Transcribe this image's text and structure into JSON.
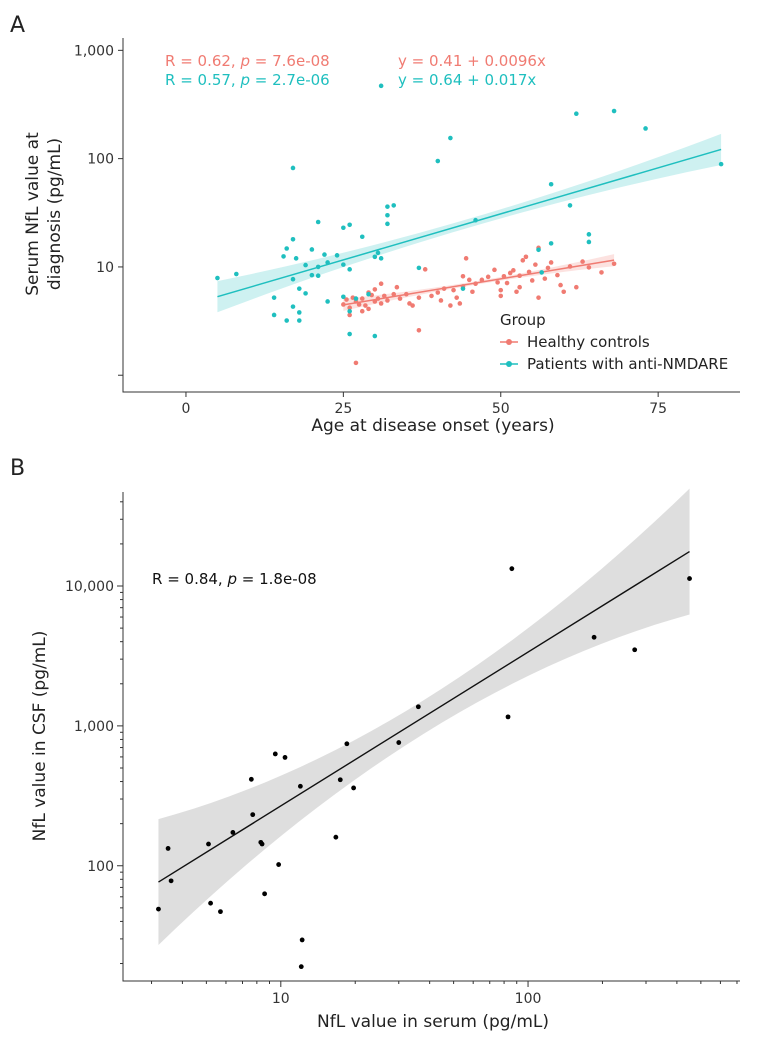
{
  "chart_data": [
    {
      "panel": "A",
      "type": "scatter",
      "xlabel": "Age at disease onset (years)",
      "ylabel_lines": [
        "Serum NfL value at",
        "diagnosis (pg/mL)"
      ],
      "x_scale": "linear",
      "y_scale": "log",
      "xlim": [
        -10,
        88
      ],
      "ylim": [
        0.7,
        1300
      ],
      "x_ticks": [
        0,
        25,
        50,
        75
      ],
      "x_tick_labels": [
        "0",
        "25",
        "50",
        "75"
      ],
      "y_ticks": [
        1,
        10,
        100,
        1000
      ],
      "y_tick_labels": [
        "",
        "10",
        "100",
        "1,000"
      ],
      "grid": false,
      "legend": {
        "title": "Group",
        "placement": "bottom-right",
        "entries": [
          "Healthy controls",
          "Patients with anti-NMDARE"
        ]
      },
      "annotations": [
        {
          "prefix": "R = 0.62, ",
          "italic": "p",
          "suffix": " = 7.6e-08",
          "series": 0
        },
        {
          "text": "y = 0.41 + 0.0096x",
          "series": 0
        },
        {
          "prefix": "R = 0.57, ",
          "italic": "p",
          "suffix": " = 2.7e-06",
          "series": 1
        },
        {
          "text": "y = 0.64 + 0.017x",
          "series": 1
        }
      ],
      "series": [
        {
          "name": "Healthy controls",
          "color": "#F07B72",
          "fit": {
            "intercept": 0.41,
            "slope": 0.0096,
            "x_range": [
              25,
              68
            ]
          },
          "points": [
            [
              25,
              4.5
            ],
            [
              25.5,
              5
            ],
            [
              26,
              3.6
            ],
            [
              26,
              4.2
            ],
            [
              26.5,
              5.2
            ],
            [
              27,
              1.3
            ],
            [
              27,
              4.8
            ],
            [
              27.5,
              4.5
            ],
            [
              28,
              5.1
            ],
            [
              28,
              3.9
            ],
            [
              28.5,
              4.4
            ],
            [
              29,
              5.8
            ],
            [
              29,
              4.1
            ],
            [
              29.5,
              5.5
            ],
            [
              30,
              6.2
            ],
            [
              30,
              4.8
            ],
            [
              30.5,
              5.1
            ],
            [
              31,
              4.6
            ],
            [
              31,
              7
            ],
            [
              31.5,
              5.4
            ],
            [
              32,
              4.9
            ],
            [
              33,
              5.6
            ],
            [
              33.5,
              6.5
            ],
            [
              34,
              5.1
            ],
            [
              35,
              5.6
            ],
            [
              35.5,
              4.6
            ],
            [
              36,
              4.4
            ],
            [
              37,
              5.2
            ],
            [
              37,
              2.6
            ],
            [
              38,
              9.5
            ],
            [
              39,
              5.4
            ],
            [
              40,
              5.8
            ],
            [
              40.5,
              4.9
            ],
            [
              41,
              6.3
            ],
            [
              42,
              4.4
            ],
            [
              42.5,
              6.1
            ],
            [
              43,
              5.2
            ],
            [
              43.5,
              4.6
            ],
            [
              44,
              6.6
            ],
            [
              44,
              8.2
            ],
            [
              44.5,
              12
            ],
            [
              45,
              7.6
            ],
            [
              45.5,
              5.9
            ],
            [
              46,
              7
            ],
            [
              47,
              7.6
            ],
            [
              48,
              8.1
            ],
            [
              49,
              9.4
            ],
            [
              49.5,
              7.2
            ],
            [
              50,
              6.1
            ],
            [
              50,
              5.4
            ],
            [
              50.5,
              8.2
            ],
            [
              51,
              7.1
            ],
            [
              51.5,
              8.8
            ],
            [
              52,
              9.3
            ],
            [
              52.5,
              5.9
            ],
            [
              53,
              6.5
            ],
            [
              53,
              8.3
            ],
            [
              53.5,
              11.5
            ],
            [
              54,
              12.4
            ],
            [
              54.5,
              9
            ],
            [
              55,
              7.5
            ],
            [
              55.5,
              10.5
            ],
            [
              56,
              15
            ],
            [
              56,
              5.2
            ],
            [
              57,
              7.8
            ],
            [
              57.5,
              9.8
            ],
            [
              58,
              11
            ],
            [
              59,
              8.4
            ],
            [
              59.5,
              6.8
            ],
            [
              60,
              5.9
            ],
            [
              61,
              10.1
            ],
            [
              62,
              6.5
            ],
            [
              63,
              11.2
            ],
            [
              64,
              9.9
            ],
            [
              66,
              8.9
            ],
            [
              68,
              10.7
            ]
          ]
        },
        {
          "name": "Patients with anti-NMDARE",
          "color": "#1FBFBF",
          "fit": {
            "intercept": 0.64,
            "slope": 0.017,
            "x_range": [
              5,
              85
            ]
          },
          "points": [
            [
              5,
              7.9
            ],
            [
              8,
              8.6
            ],
            [
              14,
              5.2
            ],
            [
              14,
              3.6
            ],
            [
              15.5,
              12.5
            ],
            [
              16,
              14.8
            ],
            [
              16,
              3.2
            ],
            [
              17,
              82
            ],
            [
              17,
              18
            ],
            [
              17,
              7.7
            ],
            [
              17,
              4.3
            ],
            [
              17.5,
              12
            ],
            [
              18,
              6.3
            ],
            [
              18,
              3.8
            ],
            [
              18,
              3.2
            ],
            [
              19,
              10.4
            ],
            [
              19,
              5.7
            ],
            [
              20,
              14.5
            ],
            [
              20,
              8.4
            ],
            [
              21,
              26
            ],
            [
              21,
              10
            ],
            [
              21,
              8.3
            ],
            [
              22,
              13
            ],
            [
              22.5,
              11
            ],
            [
              22.5,
              4.8
            ],
            [
              24,
              12.8
            ],
            [
              25,
              23
            ],
            [
              25,
              10.5
            ],
            [
              25,
              5.3
            ],
            [
              26,
              24.5
            ],
            [
              26,
              9.5
            ],
            [
              26,
              3.9
            ],
            [
              26,
              2.4
            ],
            [
              27,
              5.1
            ],
            [
              28,
              19
            ],
            [
              29,
              5.6
            ],
            [
              30,
              12.4
            ],
            [
              30,
              2.3
            ],
            [
              30.5,
              13.5
            ],
            [
              31,
              470
            ],
            [
              31,
              12
            ],
            [
              32,
              36
            ],
            [
              32,
              30
            ],
            [
              32,
              25
            ],
            [
              33,
              37
            ],
            [
              37,
              9.8
            ],
            [
              40,
              95
            ],
            [
              42,
              155
            ],
            [
              44,
              6.3
            ],
            [
              46,
              27
            ],
            [
              56,
              14.4
            ],
            [
              56.5,
              8.9
            ],
            [
              58,
              58
            ],
            [
              58,
              16.5
            ],
            [
              61,
              37
            ],
            [
              62,
              260
            ],
            [
              64,
              20
            ],
            [
              64,
              17
            ],
            [
              68,
              275
            ],
            [
              73,
              190
            ],
            [
              85,
              89
            ]
          ]
        }
      ]
    },
    {
      "panel": "B",
      "type": "scatter",
      "xlabel": "NfL value in serum (pg/mL)",
      "ylabel": "NfL value in CSF (pg/mL)",
      "x_scale": "log",
      "y_scale": "log",
      "xlim": [
        2.3,
        720
      ],
      "ylim": [
        15,
        47000
      ],
      "x_ticks": [
        10,
        100
      ],
      "x_tick_labels": [
        "10",
        "100"
      ],
      "x_minor_ticks": [
        3,
        4,
        5,
        6,
        7,
        8,
        9,
        20,
        30,
        40,
        50,
        60,
        70,
        80,
        90,
        200,
        300,
        400,
        500,
        600,
        700
      ],
      "y_ticks": [
        100,
        1000,
        10000
      ],
      "y_tick_labels": [
        "100",
        "1,000",
        "10,000"
      ],
      "y_minor_ticks": [
        20,
        30,
        40,
        50,
        60,
        70,
        80,
        90,
        200,
        300,
        400,
        500,
        600,
        700,
        800,
        900,
        2000,
        3000,
        4000,
        5000,
        6000,
        7000,
        8000,
        9000,
        20000,
        30000,
        40000
      ],
      "grid": false,
      "annotations": [
        {
          "prefix": "R = 0.84, ",
          "italic": "p",
          "suffix": " = 1.8e-08"
        }
      ],
      "series": [
        {
          "color": "#000000",
          "fit": {
            "log_intercept": 1.3277,
            "log_slope": 1.1,
            "x_range": [
              3.2,
              450
            ]
          },
          "points": [
            [
              3.2,
              49
            ],
            [
              3.5,
              133
            ],
            [
              3.6,
              78
            ],
            [
              5.1,
              143
            ],
            [
              5.2,
              54
            ],
            [
              5.7,
              47
            ],
            [
              6.4,
              173
            ],
            [
              7.6,
              415
            ],
            [
              7.7,
              232
            ],
            [
              8.3,
              147
            ],
            [
              8.4,
              143
            ],
            [
              8.6,
              63
            ],
            [
              9.5,
              630
            ],
            [
              9.8,
              102
            ],
            [
              10.4,
              595
            ],
            [
              12,
              370
            ],
            [
              12.2,
              29.5
            ],
            [
              12.1,
              19
            ],
            [
              16.7,
              160
            ],
            [
              17.4,
              412
            ],
            [
              18.5,
              745
            ],
            [
              19.7,
              360
            ],
            [
              30,
              760
            ],
            [
              36,
              1370
            ],
            [
              83,
              1160
            ],
            [
              86,
              13300
            ],
            [
              185,
              4300
            ],
            [
              270,
              3500
            ],
            [
              450,
              11300
            ]
          ]
        }
      ]
    }
  ]
}
